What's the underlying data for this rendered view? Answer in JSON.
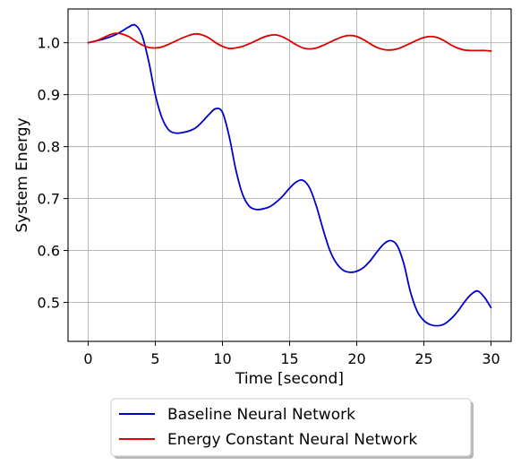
{
  "chart_data": {
    "type": "line",
    "xlabel": "Time [second]",
    "ylabel": "System Energy",
    "xlim": [
      -1.5,
      31.5
    ],
    "ylim": [
      0.425,
      1.065
    ],
    "xticks": [
      0,
      5,
      10,
      15,
      20,
      25,
      30
    ],
    "xtick_labels": [
      "0",
      "5",
      "10",
      "15",
      "20",
      "25",
      "30"
    ],
    "yticks": [
      0.5,
      0.6,
      0.7,
      0.8,
      0.9,
      1.0
    ],
    "ytick_labels": [
      "0.5",
      "0.6",
      "0.7",
      "0.8",
      "0.9",
      "1.0"
    ],
    "grid": true,
    "legend_position": "below-center",
    "series": [
      {
        "name": "Baseline Neural Network",
        "color": "#0000cc",
        "x": [
          0,
          0.5,
          1,
          1.5,
          2,
          2.5,
          3,
          3.5,
          4,
          4.5,
          5,
          5.5,
          6,
          6.5,
          7,
          7.5,
          8,
          8.5,
          9,
          9.5,
          10,
          10.5,
          11,
          11.5,
          12,
          12.5,
          13,
          13.5,
          14,
          14.5,
          15,
          15.5,
          16,
          16.5,
          17,
          17.5,
          18,
          18.5,
          19,
          19.5,
          20,
          20.5,
          21,
          21.5,
          22,
          22.5,
          23,
          23.5,
          24,
          24.5,
          25,
          25.5,
          26,
          26.5,
          27,
          27.5,
          28,
          28.5,
          29,
          29.5,
          30
        ],
        "y": [
          1.0,
          1.003,
          1.006,
          1.01,
          1.015,
          1.022,
          1.03,
          1.034,
          1.015,
          0.965,
          0.9,
          0.855,
          0.832,
          0.826,
          0.827,
          0.83,
          0.836,
          0.848,
          0.862,
          0.873,
          0.866,
          0.82,
          0.755,
          0.708,
          0.685,
          0.679,
          0.68,
          0.684,
          0.693,
          0.705,
          0.72,
          0.732,
          0.735,
          0.72,
          0.685,
          0.64,
          0.6,
          0.575,
          0.562,
          0.558,
          0.56,
          0.567,
          0.58,
          0.597,
          0.612,
          0.619,
          0.61,
          0.575,
          0.52,
          0.483,
          0.465,
          0.457,
          0.455,
          0.458,
          0.468,
          0.482,
          0.5,
          0.515,
          0.522,
          0.51,
          0.49
        ]
      },
      {
        "name": "Energy Constant Neural Network",
        "color": "#dd0000",
        "x": [
          0,
          0.5,
          1,
          1.5,
          2,
          2.5,
          3,
          3.5,
          4,
          4.5,
          5,
          5.5,
          6,
          6.5,
          7,
          7.5,
          8,
          8.5,
          9,
          9.5,
          10,
          10.5,
          11,
          11.5,
          12,
          12.5,
          13,
          13.5,
          14,
          14.5,
          15,
          15.5,
          16,
          16.5,
          17,
          17.5,
          18,
          18.5,
          19,
          19.5,
          20,
          20.5,
          21,
          21.5,
          22,
          22.5,
          23,
          23.5,
          24,
          24.5,
          25,
          25.5,
          26,
          26.5,
          27,
          27.5,
          28,
          28.5,
          29,
          29.5,
          30
        ],
        "y": [
          1.0,
          1.003,
          1.008,
          1.014,
          1.018,
          1.017,
          1.012,
          1.004,
          0.996,
          0.991,
          0.99,
          0.992,
          0.997,
          1.003,
          1.009,
          1.014,
          1.017,
          1.015,
          1.009,
          1.0,
          0.993,
          0.989,
          0.99,
          0.993,
          0.998,
          1.004,
          1.01,
          1.014,
          1.015,
          1.011,
          1.004,
          0.996,
          0.99,
          0.988,
          0.99,
          0.995,
          1.001,
          1.007,
          1.012,
          1.014,
          1.012,
          1.006,
          0.998,
          0.991,
          0.987,
          0.986,
          0.988,
          0.993,
          0.999,
          1.005,
          1.01,
          1.012,
          1.01,
          1.004,
          0.996,
          0.99,
          0.986,
          0.985,
          0.985,
          0.985,
          0.984
        ]
      }
    ]
  }
}
